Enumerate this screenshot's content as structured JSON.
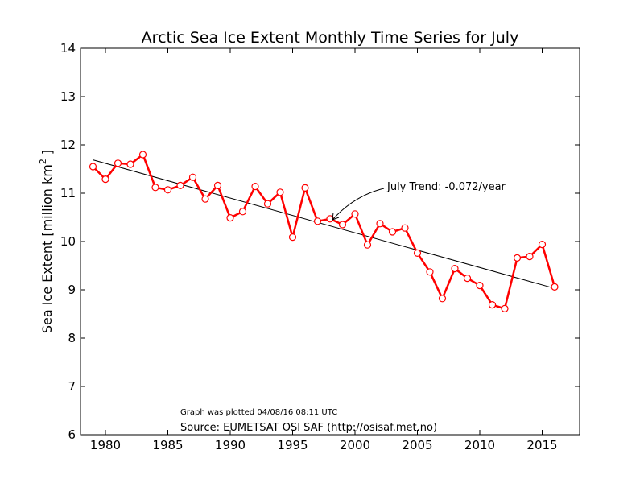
{
  "chart_data": {
    "type": "line",
    "title": "Arctic Sea Ice Extent Monthly Time Series for July",
    "xlabel": "",
    "ylabel_main": "Sea Ice Extent [million km",
    "ylabel_sup": "2",
    "ylabel_close": " ]",
    "xlim": [
      1978,
      2018
    ],
    "ylim": [
      6,
      14
    ],
    "xticks": [
      1980,
      1985,
      1990,
      1995,
      2000,
      2005,
      2010,
      2015
    ],
    "yticks": [
      6,
      7,
      8,
      9,
      10,
      11,
      12,
      13,
      14
    ],
    "grid": false,
    "series": [
      {
        "color": "#ff0000",
        "marker": "open-circle",
        "x": [
          1979,
          1980,
          1981,
          1982,
          1983,
          1984,
          1985,
          1986,
          1987,
          1988,
          1989,
          1990,
          1991,
          1992,
          1993,
          1994,
          1995,
          1996,
          1997,
          1998,
          1999,
          2000,
          2001,
          2002,
          2003,
          2004,
          2005,
          2006,
          2007,
          2008,
          2009,
          2010,
          2011,
          2012,
          2013,
          2014,
          2015,
          2016
        ],
        "y": [
          11.55,
          11.29,
          11.62,
          11.6,
          11.8,
          11.12,
          11.07,
          11.16,
          11.33,
          10.88,
          11.16,
          10.49,
          10.62,
          11.14,
          10.78,
          11.02,
          10.09,
          11.11,
          10.42,
          10.47,
          10.35,
          10.57,
          9.93,
          10.37,
          10.2,
          10.28,
          9.76,
          9.37,
          8.82,
          9.44,
          9.24,
          9.09,
          8.69,
          8.61,
          9.66,
          9.69,
          9.94,
          9.06
        ]
      }
    ],
    "trend": {
      "color": "#000000",
      "x": [
        1979,
        2016
      ],
      "y": [
        11.69,
        9.03
      ],
      "label": "July Trend: -0.072/year",
      "arrow_target_x": 1998
    },
    "footer": {
      "plotted": "Graph was plotted 04/08/16 08:11 UTC",
      "source": "Source: EUMETSAT OSI SAF (http://osisaf.met.no)"
    }
  }
}
